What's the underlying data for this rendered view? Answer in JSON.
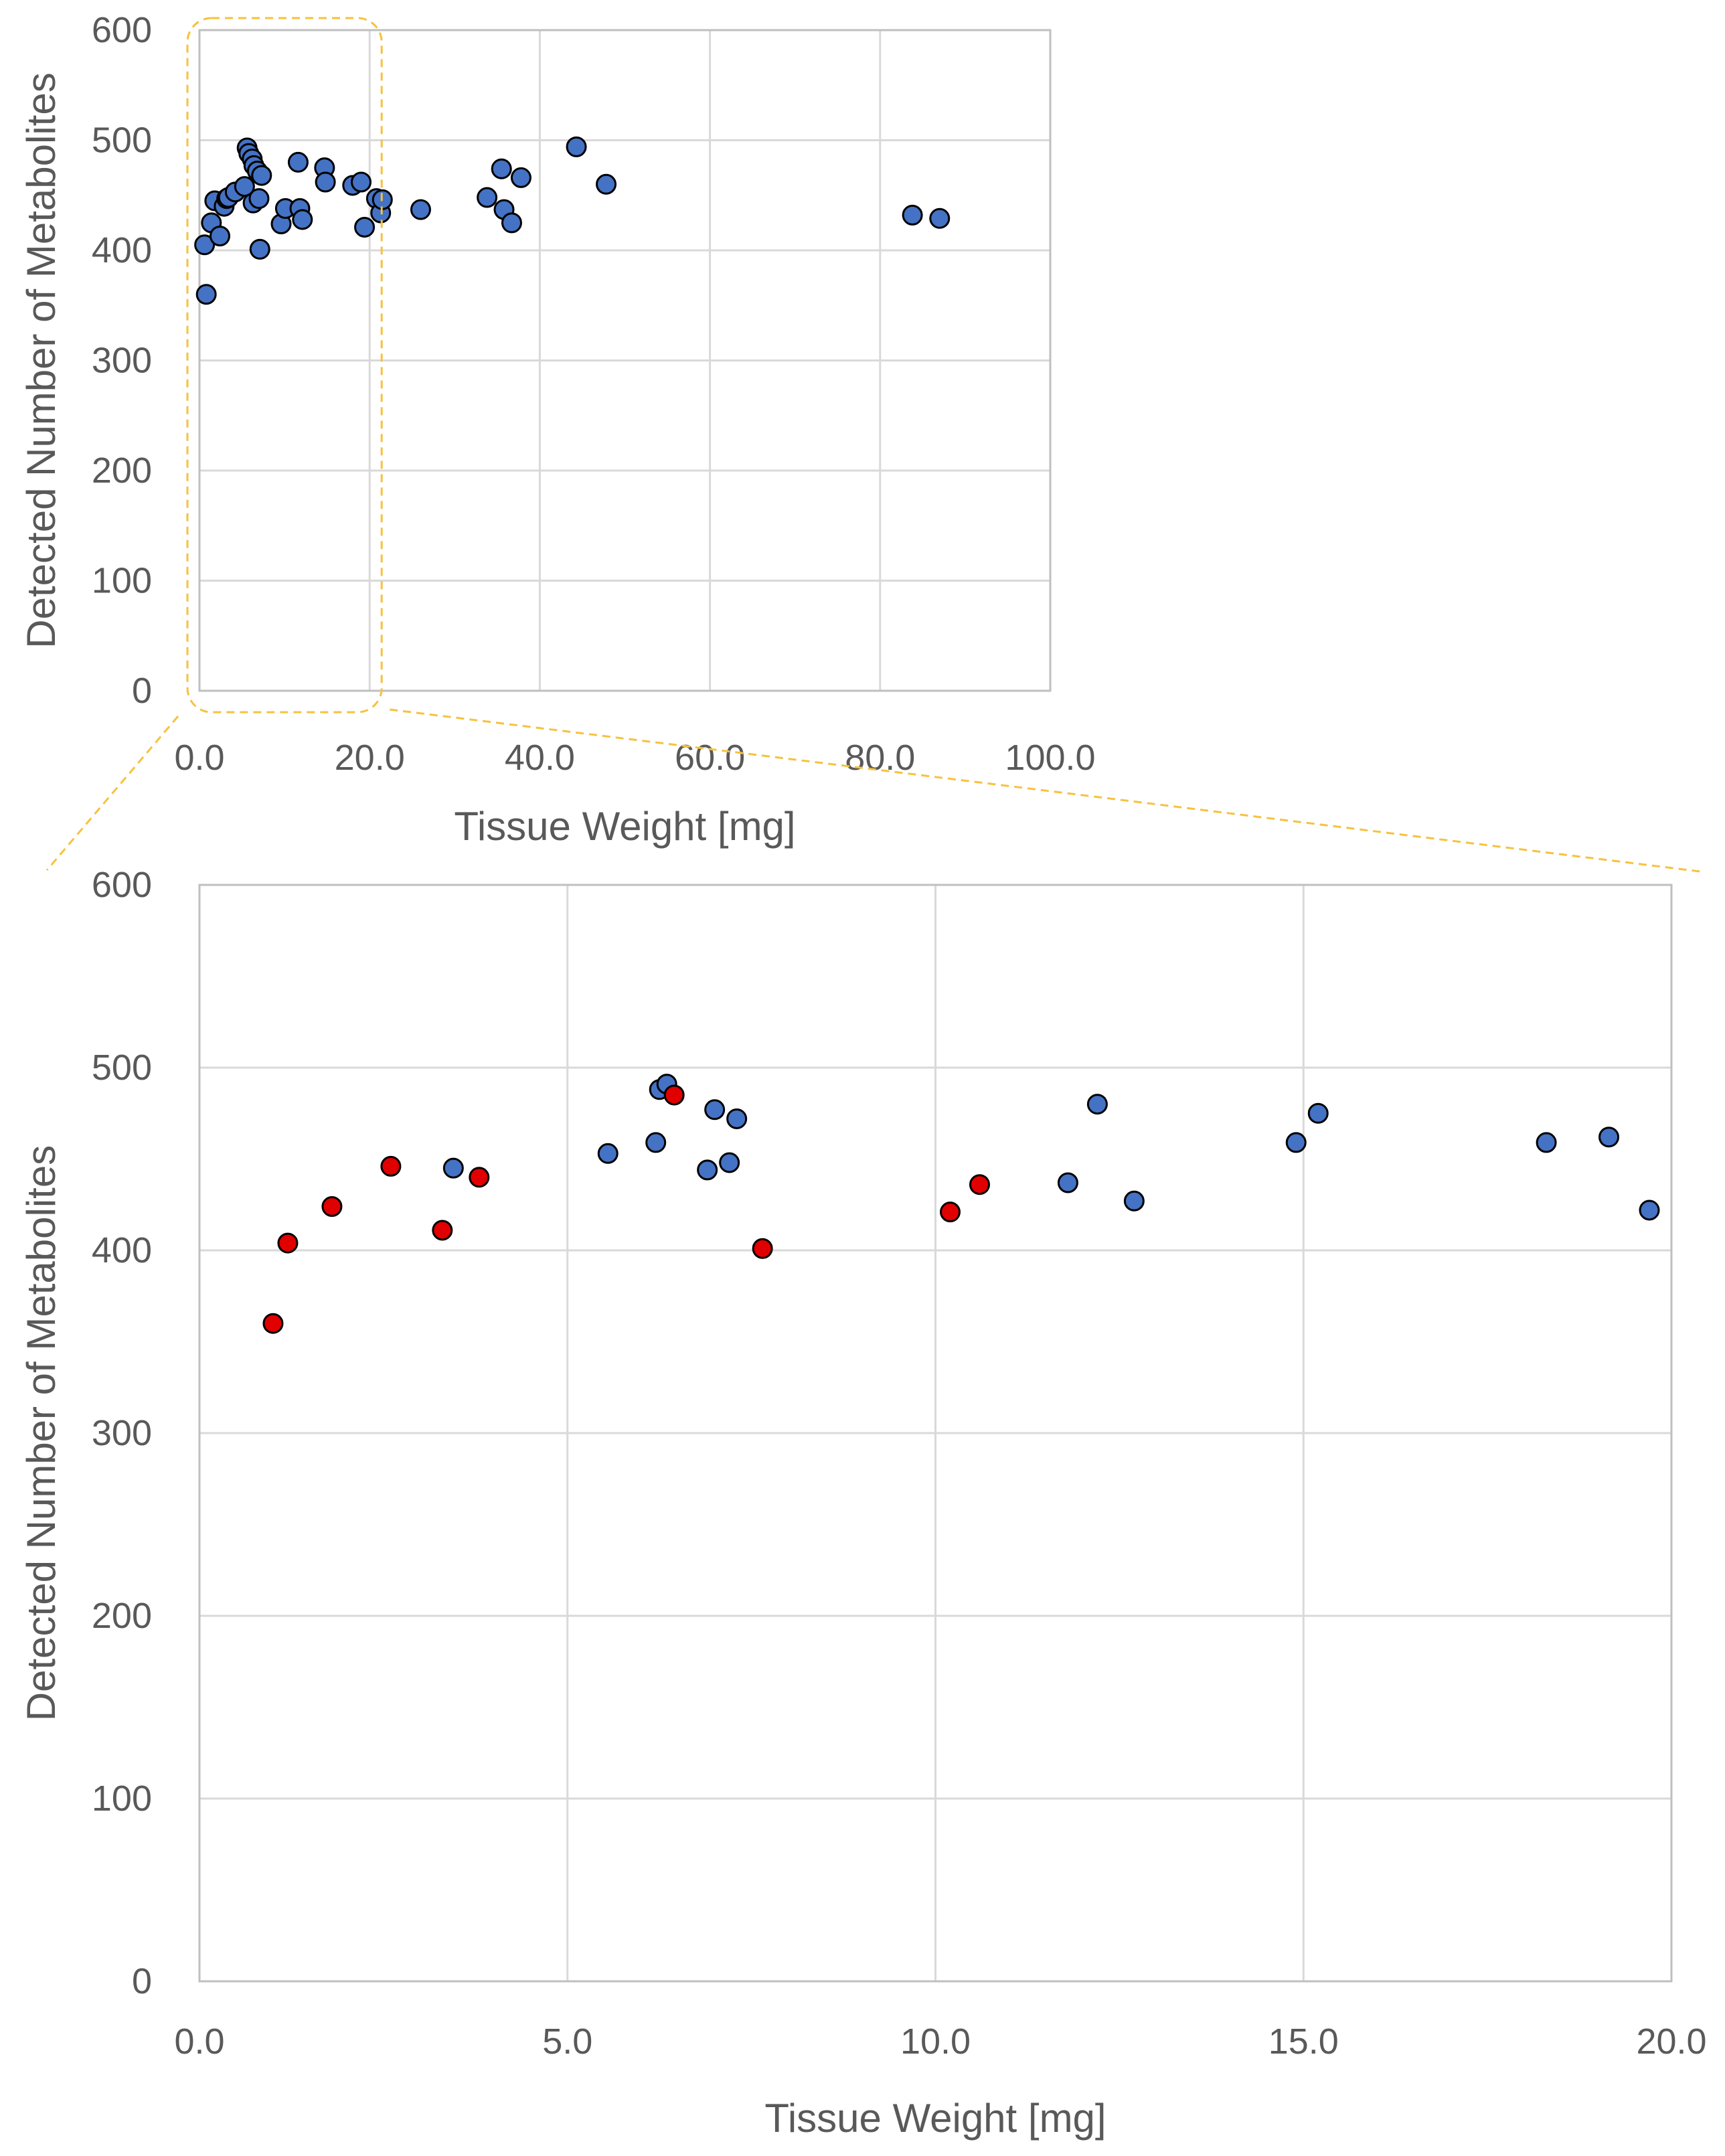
{
  "chart_data": [
    {
      "type": "scatter",
      "name": "overview",
      "xlabel": "Tissue Weight [mg]",
      "ylabel": "Detected Number  of Metabolites",
      "xlim": [
        0,
        100
      ],
      "ylim": [
        0,
        600
      ],
      "xticks": [
        0,
        20,
        40,
        60,
        80,
        100
      ],
      "xtick_labels": [
        "0.0",
        "20.0",
        "40.0",
        "60.0",
        "80.0",
        "100.0"
      ],
      "yticks": [
        0,
        100,
        200,
        300,
        400,
        500,
        600
      ],
      "ytick_labels": [
        "0",
        "100",
        "200",
        "300",
        "400",
        "500",
        "600"
      ],
      "grid": true,
      "highlight_region": {
        "x": [
          0,
          20
        ],
        "y": [
          0,
          600
        ],
        "style": "dashed rounded box"
      },
      "series": [
        {
          "name": "samples",
          "color": "#4472c4",
          "x": [
            0.8,
            0.6,
            1.4,
            1.8,
            2.4,
            2.9,
            3.2,
            3.4,
            4.2,
            5.3,
            5.6,
            5.8,
            6.2,
            6.4,
            6.3,
            6.8,
            7.0,
            7.1,
            7.3,
            9.6,
            10.1,
            11.6,
            11.8,
            12.1,
            14.7,
            14.8,
            18.0,
            19.0,
            19.4,
            20.8,
            21.3,
            21.5,
            26.0,
            33.8,
            35.5,
            35.8,
            36.7,
            37.8,
            44.3,
            47.8,
            83.8,
            87.0
          ],
          "y": [
            360,
            405,
            425,
            445,
            413,
            440,
            447,
            448,
            453,
            458,
            493,
            488,
            483,
            477,
            443,
            472,
            447,
            401,
            468,
            424,
            438,
            480,
            438,
            428,
            475,
            462,
            459,
            462,
            421,
            447,
            434,
            446,
            437,
            448,
            474,
            437,
            425,
            466,
            494,
            460,
            432,
            429
          ]
        }
      ]
    },
    {
      "type": "scatter",
      "name": "zoom",
      "xlabel": "Tissue Weight [mg]",
      "ylabel": "Detected Number  of Metabolites",
      "xlim": [
        0,
        20
      ],
      "ylim": [
        0,
        600
      ],
      "xticks": [
        0,
        5,
        10,
        15,
        20
      ],
      "xtick_labels": [
        "0.0",
        "5.0",
        "10.0",
        "15.0",
        "20.0"
      ],
      "yticks": [
        0,
        100,
        200,
        300,
        400,
        500,
        600
      ],
      "ytick_labels": [
        "0",
        "100",
        "200",
        "300",
        "400",
        "500",
        "600"
      ],
      "grid": true,
      "series": [
        {
          "name": "blue samples",
          "color": "#4472c4",
          "x": [
            3.45,
            5.55,
            6.2,
            6.25,
            6.35,
            6.9,
            7.0,
            7.2,
            7.3,
            11.8,
            12.2,
            12.7,
            14.9,
            15.2,
            18.3,
            19.15,
            19.7
          ],
          "y": [
            445,
            453,
            459,
            488,
            491,
            444,
            477,
            448,
            472,
            437,
            480,
            427,
            459,
            475,
            459,
            462,
            422
          ]
        },
        {
          "name": "red samples",
          "color": "#e00000",
          "x": [
            1.0,
            1.2,
            1.8,
            2.6,
            3.3,
            3.8,
            6.45,
            7.65,
            10.2,
            10.6
          ],
          "y": [
            360,
            404,
            424,
            446,
            411,
            440,
            485,
            401,
            421,
            436
          ]
        }
      ]
    }
  ]
}
